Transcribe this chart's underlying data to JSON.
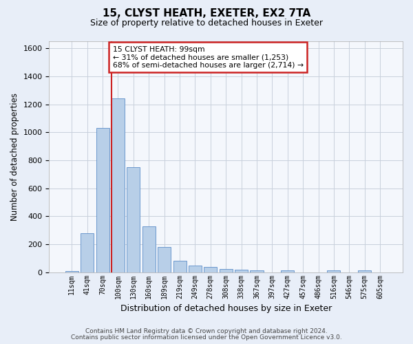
{
  "title1": "15, CLYST HEATH, EXETER, EX2 7TA",
  "title2": "Size of property relative to detached houses in Exeter",
  "xlabel": "Distribution of detached houses by size in Exeter",
  "ylabel": "Number of detached properties",
  "bar_labels": [
    "11sqm",
    "41sqm",
    "70sqm",
    "100sqm",
    "130sqm",
    "160sqm",
    "189sqm",
    "219sqm",
    "249sqm",
    "278sqm",
    "308sqm",
    "338sqm",
    "367sqm",
    "397sqm",
    "427sqm",
    "457sqm",
    "486sqm",
    "516sqm",
    "546sqm",
    "575sqm",
    "605sqm"
  ],
  "bar_values": [
    10,
    280,
    1030,
    1240,
    750,
    330,
    180,
    80,
    45,
    40,
    25,
    16,
    15,
    0,
    15,
    0,
    0,
    14,
    0,
    14,
    0
  ],
  "bar_color": "#b8cfe8",
  "bar_edge_color": "#5b8cc8",
  "vline_x_idx": 2,
  "vline_color": "#cc2222",
  "annotation_line1": "15 CLYST HEATH: 99sqm",
  "annotation_line2": "← 31% of detached houses are smaller (1,253)",
  "annotation_line3": "68% of semi-detached houses are larger (2,714) →",
  "annotation_box_color": "#cc2222",
  "ylim": [
    0,
    1650
  ],
  "yticks": [
    0,
    200,
    400,
    600,
    800,
    1000,
    1200,
    1400,
    1600
  ],
  "footer1": "Contains HM Land Registry data © Crown copyright and database right 2024.",
  "footer2": "Contains public sector information licensed under the Open Government Licence v3.0.",
  "bg_color": "#e8eef8",
  "plot_bg_color": "#f4f7fc",
  "grid_color": "#c8d0dc"
}
